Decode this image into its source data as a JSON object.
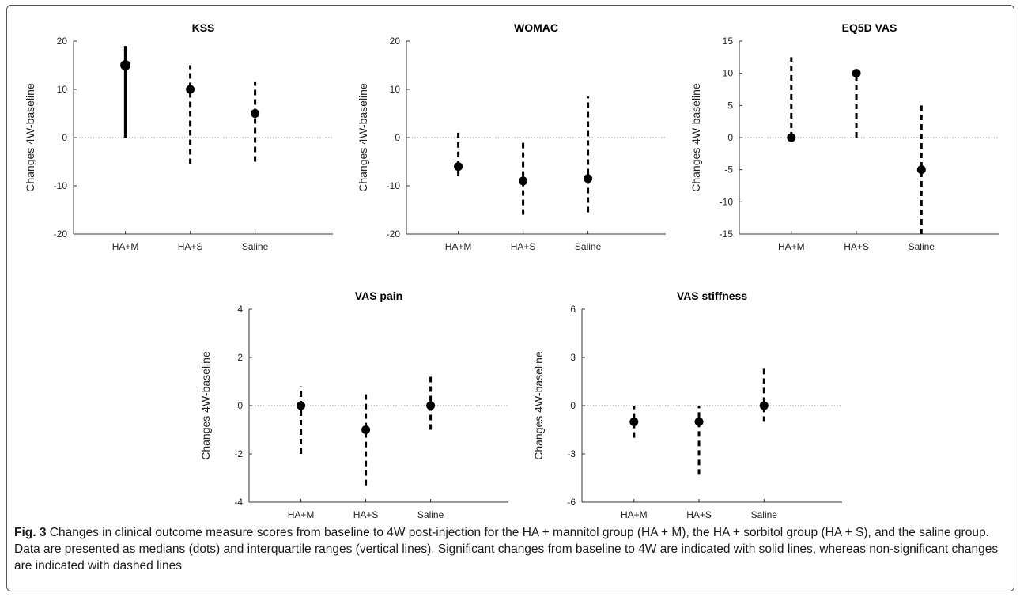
{
  "figure": {
    "caption_label": "Fig. 3",
    "caption_text": "Changes in clinical outcome measure scores from baseline to 4W post-injection for the HA + mannitol group (HA + M), the HA + sorbitol group (HA + S), and the saline group. Data are presented as medians (dots) and interquartile ranges (vertical lines). Significant changes from baseline to 4W are indicated with solid lines, whereas non-significant changes are indicated with dashed lines"
  },
  "chart_data": [
    {
      "type": "scatter",
      "title": "KSS",
      "ylabel": "Changes 4W-baseline",
      "categories": [
        "HA+M",
        "HA+S",
        "Saline"
      ],
      "ylim": [
        -20,
        20
      ],
      "yticks": [
        "-20",
        "-10",
        "0",
        "10",
        "20"
      ],
      "median": [
        15,
        10,
        5
      ],
      "iqr_low": [
        0,
        -5.5,
        -5
      ],
      "iqr_high": [
        19,
        15,
        11.5
      ],
      "significant": [
        true,
        false,
        false
      ],
      "zero_line": true
    },
    {
      "type": "scatter",
      "title": "WOMAC",
      "ylabel": "Changes 4W-baseline",
      "categories": [
        "HA+M",
        "HA+S",
        "Saline"
      ],
      "ylim": [
        -20,
        20
      ],
      "yticks": [
        "-20",
        "-10",
        "0",
        "10",
        "20"
      ],
      "median": [
        -6,
        -9,
        -8.5
      ],
      "iqr_low": [
        -8,
        -16,
        -15.5
      ],
      "iqr_high": [
        1,
        -0.5,
        8.5
      ],
      "significant": [
        false,
        false,
        false
      ],
      "zero_line": true
    },
    {
      "type": "scatter",
      "title": "EQ5D VAS",
      "ylabel": "Changes 4W-baseline",
      "categories": [
        "HA+M",
        "HA+S",
        "Saline"
      ],
      "ylim": [
        -15,
        15
      ],
      "yticks": [
        "-15",
        "-10",
        "-5",
        "0",
        "5",
        "10",
        "15"
      ],
      "median": [
        0,
        10,
        -5
      ],
      "iqr_low": [
        0,
        0,
        -15
      ],
      "iqr_high": [
        12.5,
        10,
        5
      ],
      "significant": [
        false,
        false,
        false
      ],
      "zero_line": true
    },
    {
      "type": "scatter",
      "title": "VAS pain",
      "ylabel": "Changes 4W-baseline",
      "categories": [
        "HA+M",
        "HA+S",
        "Saline"
      ],
      "ylim": [
        -4,
        4
      ],
      "yticks": [
        "-4",
        "-2",
        "0",
        "2",
        "4"
      ],
      "median": [
        0,
        -1,
        0
      ],
      "iqr_low": [
        -2,
        -3.3,
        -1
      ],
      "iqr_high": [
        0.8,
        0.5,
        1.3
      ],
      "significant": [
        false,
        false,
        false
      ],
      "zero_line": true
    },
    {
      "type": "scatter",
      "title": "VAS stiffness",
      "ylabel": "Changes 4W-baseline",
      "categories": [
        "HA+M",
        "HA+S",
        "Saline"
      ],
      "ylim": [
        -6,
        6
      ],
      "yticks": [
        "-6",
        "-3",
        "0",
        "3",
        "6"
      ],
      "median": [
        -1,
        -1,
        0
      ],
      "iqr_low": [
        -2,
        -4.3,
        -1
      ],
      "iqr_high": [
        0,
        0,
        2.4
      ],
      "significant": [
        false,
        false,
        false
      ],
      "zero_line": true
    }
  ]
}
